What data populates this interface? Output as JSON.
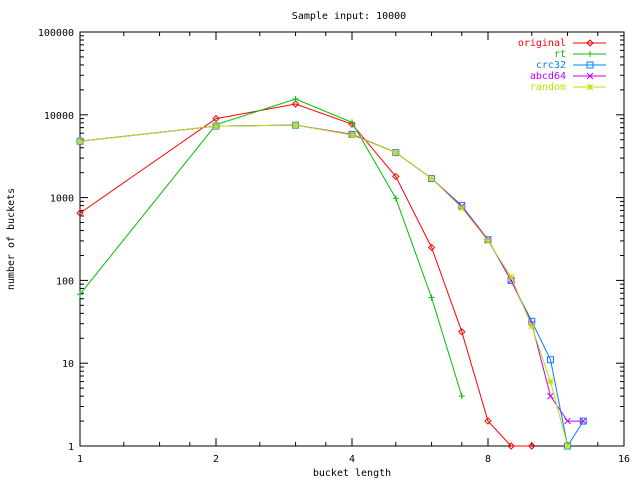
{
  "chart_data": {
    "type": "line",
    "title": "Sample input: 10000",
    "xlabel": "bucket length",
    "ylabel": "number of buckets",
    "x_scale": "log2",
    "y_scale": "log10",
    "xlim": [
      1,
      16
    ],
    "ylim": [
      1,
      100000
    ],
    "x_ticks": [
      1,
      2,
      4,
      8,
      16
    ],
    "y_ticks": [
      1,
      10,
      100,
      1000,
      10000,
      100000
    ],
    "x_tick_labels": [
      "1",
      "2",
      "4",
      "8",
      "16"
    ],
    "y_tick_labels": [
      "1",
      "10",
      "100",
      "1000",
      "10000",
      "100000"
    ],
    "grid": false,
    "legend_position": "top-right",
    "series": [
      {
        "name": "original",
        "color": "#ff0000",
        "marker": "diamond",
        "x": [
          1,
          2,
          3,
          4,
          5,
          6,
          7,
          8,
          9,
          10
        ],
        "y": [
          650,
          9000,
          13500,
          7700,
          1800,
          250,
          24,
          2,
          1,
          1
        ]
      },
      {
        "name": "rt",
        "color": "#00c000",
        "marker": "plus",
        "x": [
          1,
          2,
          3,
          4,
          5,
          6,
          7
        ],
        "y": [
          68,
          7600,
          15500,
          8100,
          980,
          62,
          4
        ]
      },
      {
        "name": "crc32",
        "color": "#0080ff",
        "marker": "square",
        "x": [
          1,
          2,
          3,
          4,
          5,
          6,
          7,
          8,
          9,
          10,
          11,
          12,
          13
        ],
        "y": [
          4800,
          7300,
          7500,
          5800,
          3500,
          1700,
          800,
          310,
          100,
          32,
          11,
          1,
          2
        ]
      },
      {
        "name": "abcd64",
        "color": "#c000ff",
        "marker": "cross",
        "x": [
          1,
          2,
          3,
          4,
          5,
          6,
          7,
          8,
          9,
          10,
          11,
          12,
          13
        ],
        "y": [
          4800,
          7300,
          7500,
          5800,
          3500,
          1700,
          780,
          310,
          100,
          30,
          4,
          2,
          2
        ]
      },
      {
        "name": "random",
        "color": "#c0e000",
        "marker": "star",
        "x": [
          1,
          2,
          3,
          4,
          5,
          6,
          7,
          8,
          9,
          10,
          11,
          12
        ],
        "y": [
          4800,
          7300,
          7500,
          5700,
          3500,
          1700,
          750,
          300,
          110,
          28,
          6,
          1
        ]
      }
    ]
  }
}
